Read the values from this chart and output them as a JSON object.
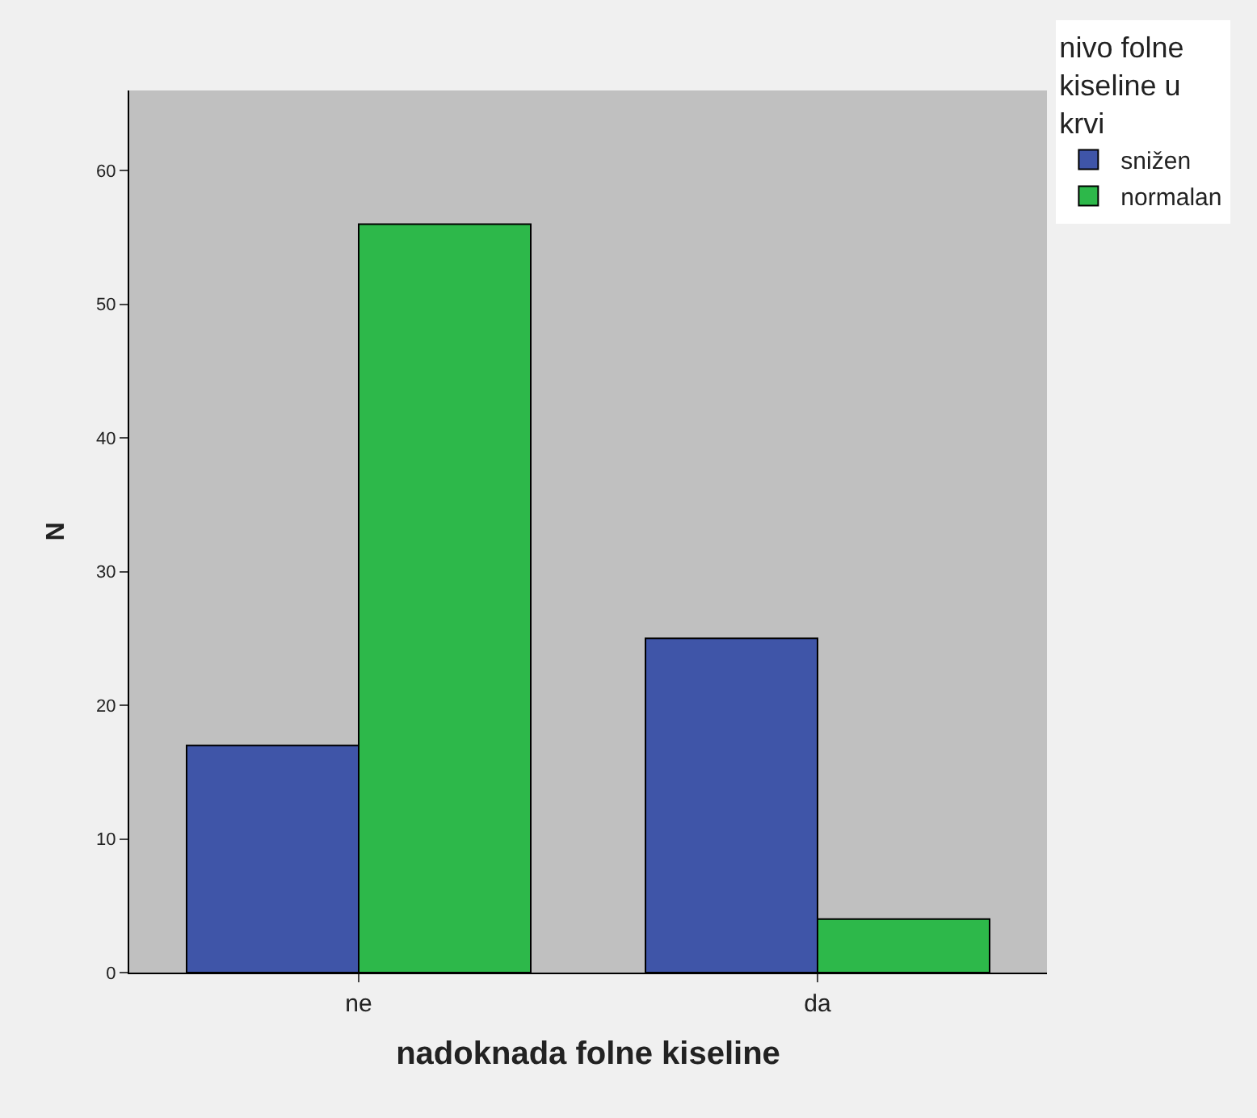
{
  "chart_data": {
    "type": "bar",
    "xlabel": "nadoknada folne kiseline",
    "ylabel": "N",
    "legend_title": "nivo folne kiseline u krvi",
    "categories": [
      "ne",
      "da"
    ],
    "series": [
      {
        "name": "snižen",
        "color": "#3f55a8",
        "values": [
          17,
          25
        ]
      },
      {
        "name": "normalan",
        "color": "#2db84a",
        "values": [
          56,
          4
        ]
      }
    ],
    "ylim": [
      0,
      66
    ],
    "yticks": [
      0,
      10,
      20,
      30,
      40,
      50,
      60
    ],
    "grid": false,
    "legend": "top right"
  }
}
